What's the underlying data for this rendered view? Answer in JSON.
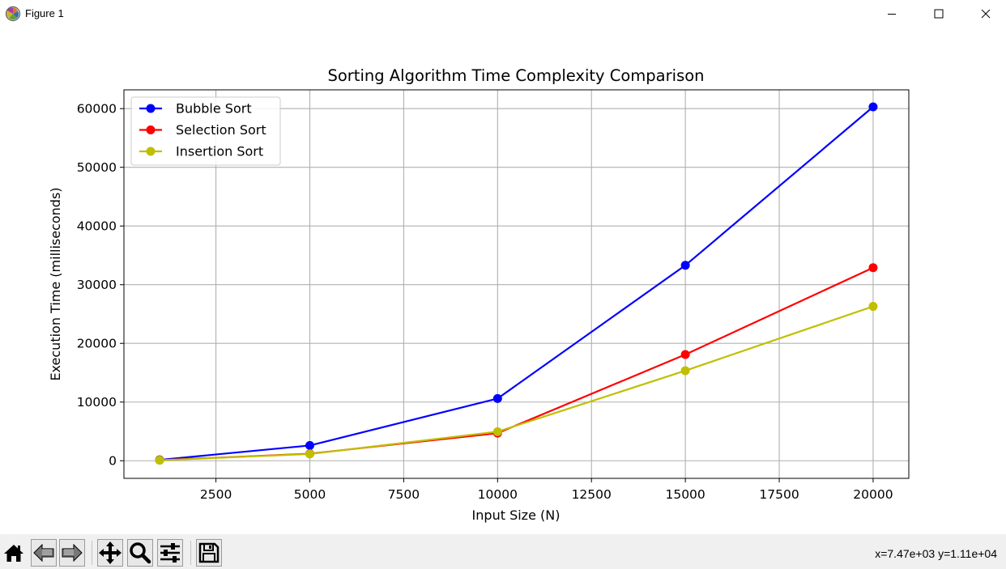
{
  "window": {
    "title": "Figure 1",
    "controls": {
      "minimize": "minimize-icon",
      "maximize": "maximize-icon",
      "close": "close-icon"
    }
  },
  "toolbar": {
    "buttons": [
      {
        "name": "home",
        "icon": "home-icon"
      },
      {
        "name": "back",
        "icon": "back-arrow-icon"
      },
      {
        "name": "forward",
        "icon": "forward-arrow-icon"
      },
      {
        "name": "pan",
        "icon": "move-icon"
      },
      {
        "name": "zoom",
        "icon": "magnifier-icon"
      },
      {
        "name": "configure-subplots",
        "icon": "sliders-icon"
      },
      {
        "name": "save",
        "icon": "floppy-disk-icon"
      }
    ],
    "coordinates": "x=7.47e+03 y=1.11e+04"
  },
  "chart_data": {
    "type": "line",
    "title": "Sorting Algorithm Time Complexity Comparison",
    "xlabel": "Input Size (N)",
    "ylabel": "Execution Time (milliseconds)",
    "x": [
      1000,
      5000,
      10000,
      15000,
      20000
    ],
    "xlim": [
      50,
      20950
    ],
    "ylim": [
      -3000,
      63200
    ],
    "xticks": [
      2500,
      5000,
      7500,
      10000,
      12500,
      15000,
      17500,
      20000
    ],
    "yticks": [
      0,
      10000,
      20000,
      30000,
      40000,
      50000,
      60000
    ],
    "grid": true,
    "legend_position": "upper-left",
    "marker": "circle",
    "series": [
      {
        "name": "Bubble Sort",
        "color": "#0000ff",
        "values": [
          150,
          2600,
          10600,
          33300,
          60300
        ]
      },
      {
        "name": "Selection Sort",
        "color": "#ff0000",
        "values": [
          100,
          1200,
          4700,
          18100,
          32900
        ]
      },
      {
        "name": "Insertion Sort",
        "color": "#bfbf00",
        "values": [
          80,
          1150,
          4950,
          15350,
          26300
        ]
      }
    ]
  }
}
